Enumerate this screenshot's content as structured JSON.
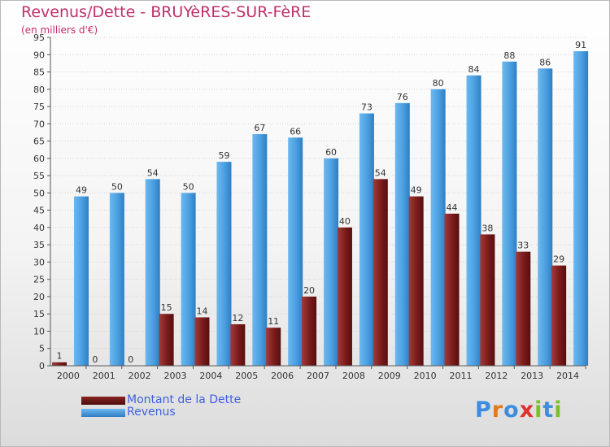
{
  "chart_data": {
    "type": "bar",
    "title": "Revenus/Dette - BRUYèRES-SUR-FèRE",
    "subtitle": "(en milliers d'€)",
    "categories": [
      "2000",
      "2001",
      "2002",
      "2003",
      "2004",
      "2005",
      "2006",
      "2007",
      "2008",
      "2009",
      "2010",
      "2011",
      "2012",
      "2013",
      "2014"
    ],
    "series": [
      {
        "name": "Montant de la Dette",
        "color": "#7a1b1b",
        "values": [
          1,
          0,
          0,
          15,
          14,
          12,
          11,
          20,
          40,
          54,
          49,
          44,
          38,
          33,
          29
        ]
      },
      {
        "name": "Revenus",
        "color": "#4a9fe0",
        "values": [
          49,
          50,
          54,
          50,
          59,
          67,
          66,
          60,
          73,
          76,
          80,
          84,
          88,
          86,
          91
        ]
      }
    ],
    "ylim": [
      0,
      95
    ],
    "yticks": [
      0,
      5,
      10,
      15,
      20,
      25,
      30,
      35,
      40,
      45,
      50,
      55,
      60,
      65,
      70,
      75,
      80,
      85,
      90,
      95
    ],
    "xlabel": "",
    "ylabel": "",
    "grid": true,
    "legend": "bottom-left"
  },
  "logo": {
    "text": "Proxiti"
  }
}
